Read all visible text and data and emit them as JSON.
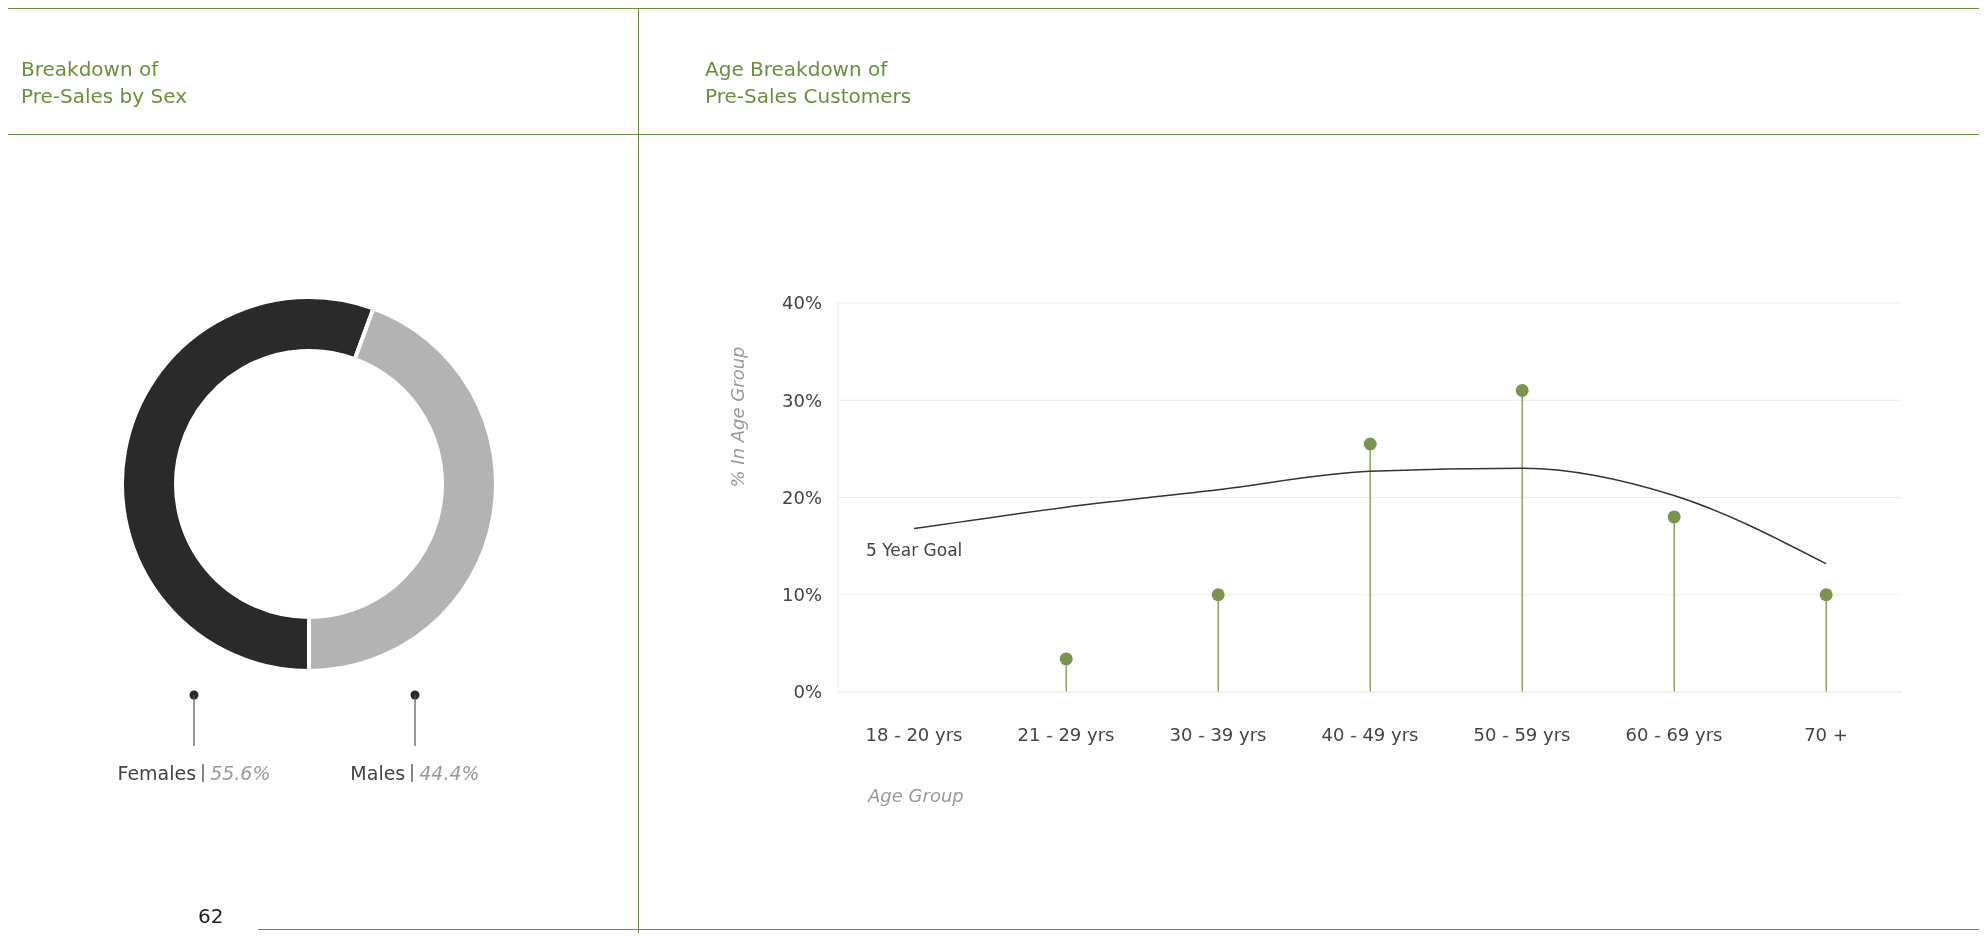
{
  "chart_data": [
    {
      "type": "donut",
      "title": "Breakdown of\nPre-Sales by Sex",
      "categories": [
        "Females",
        "Males"
      ],
      "values": [
        55.6,
        44.4
      ],
      "colors": [
        "#2a2a2a",
        "#b3b3b3"
      ],
      "value_labels": [
        "55.6%",
        "44.4%"
      ],
      "annotations": [
        "62"
      ]
    },
    {
      "type": "lollipop",
      "title": "Age Breakdown of\nPre-Sales Customers",
      "xlabel": "Age Group",
      "ylabel": "% In Age Group",
      "categories": [
        "18 - 20 yrs",
        "21 - 29 yrs",
        "30 - 39 yrs",
        "40 - 49 yrs",
        "50 - 59 yrs",
        "60 - 69 yrs",
        "70 +"
      ],
      "series": [
        {
          "type": "lollipop",
          "color": "#7a9450",
          "marker": "circle",
          "values": [
            null,
            3.4,
            10,
            25.5,
            31,
            18,
            10
          ]
        },
        {
          "type": "line",
          "color": "#333333",
          "values": [
            16.8,
            19,
            20.8,
            22.7,
            23,
            20.2,
            13.2
          ]
        }
      ],
      "ylim": [
        0,
        40
      ],
      "yticks": [
        {
          "value": 0,
          "label": "0%"
        },
        {
          "value": 10,
          "label": "10%"
        },
        {
          "value": 20,
          "label": "20%"
        },
        {
          "value": 30,
          "label": "30%"
        },
        {
          "value": 40,
          "label": "40%"
        }
      ],
      "grid": "y",
      "annotations": [
        "5 Year Goal"
      ]
    }
  ]
}
